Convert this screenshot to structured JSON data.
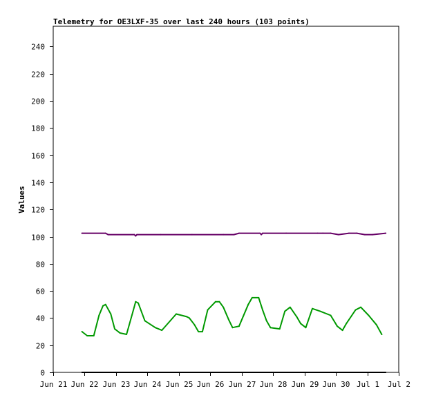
{
  "chart_data": {
    "type": "line",
    "title": "Telemetry for OE3LXF-35 over last 240 hours (103 points)",
    "xlabel": "",
    "ylabel": "Values",
    "ylim": [
      0,
      255
    ],
    "yticks": [
      0,
      20,
      40,
      60,
      80,
      100,
      120,
      140,
      160,
      180,
      200,
      220,
      240
    ],
    "xlim": [
      "2024-06-21T00:00",
      "2024-07-02T00:00"
    ],
    "xticks": [
      {
        "label": "Jun 21",
        "date": "2024-06-21"
      },
      {
        "label": "Jun 22",
        "date": "2024-06-22"
      },
      {
        "label": "Jun 23",
        "date": "2024-06-23"
      },
      {
        "label": "Jun 24",
        "date": "2024-06-24"
      },
      {
        "label": "Jun 25",
        "date": "2024-06-25"
      },
      {
        "label": "Jun 26",
        "date": "2024-06-26"
      },
      {
        "label": "Jun 27",
        "date": "2024-06-27"
      },
      {
        "label": "Jun 28",
        "date": "2024-06-28"
      },
      {
        "label": "Jun 29",
        "date": "2024-06-29"
      },
      {
        "label": "Jun 30",
        "date": "2024-06-30"
      },
      {
        "label": "Jul 1",
        "date": "2024-07-01"
      },
      {
        "label": "Jul 2",
        "date": "2024-07-02"
      }
    ],
    "grid": false,
    "legend": "none",
    "series": [
      {
        "color": "#660066",
        "x": [
          "2024-06-21T22:00",
          "2024-06-22T16:00",
          "2024-06-22T18:00",
          "2024-06-23T14:00",
          "2024-06-23T15:00",
          "2024-06-23T16:00",
          "2024-06-24T10:00",
          "2024-06-25T10:00",
          "2024-06-26T10:00",
          "2024-06-26T18:00",
          "2024-06-26T22:00",
          "2024-06-27T14:00",
          "2024-06-27T15:00",
          "2024-06-27T16:00",
          "2024-06-28T10:00",
          "2024-06-29T10:00",
          "2024-06-29T14:00",
          "2024-06-29T20:00",
          "2024-06-30T02:00",
          "2024-06-30T10:00",
          "2024-06-30T16:00",
          "2024-06-30T22:00",
          "2024-07-01T04:00",
          "2024-07-01T14:00"
        ],
        "values": [
          102.5,
          102.5,
          101.5,
          101.5,
          100.5,
          101.5,
          101.5,
          101.5,
          101.5,
          101.5,
          102.5,
          102.5,
          101.5,
          102.5,
          102.5,
          102.5,
          102.5,
          102.5,
          101.5,
          102.5,
          102.5,
          101.5,
          101.5,
          102.5
        ]
      },
      {
        "color": "#009900",
        "x": [
          "2024-06-21T22:00",
          "2024-06-22T02:00",
          "2024-06-22T07:00",
          "2024-06-22T11:00",
          "2024-06-22T14:00",
          "2024-06-22T16:00",
          "2024-06-22T20:00",
          "2024-06-22T23:00",
          "2024-06-23T03:00",
          "2024-06-23T08:00",
          "2024-06-23T13:00",
          "2024-06-23T15:00",
          "2024-06-23T17:00",
          "2024-06-23T22:00",
          "2024-06-24T06:00",
          "2024-06-24T11:00",
          "2024-06-24T22:00",
          "2024-06-25T06:00",
          "2024-06-25T08:00",
          "2024-06-25T12:00",
          "2024-06-25T15:00",
          "2024-06-25T18:00",
          "2024-06-25T22:00",
          "2024-06-26T04:00",
          "2024-06-26T07:00",
          "2024-06-26T10:00",
          "2024-06-26T14:00",
          "2024-06-26T17:00",
          "2024-06-26T22:00",
          "2024-06-27T05:00",
          "2024-06-27T08:00",
          "2024-06-27T13:00",
          "2024-06-27T16:00",
          "2024-06-27T19:00",
          "2024-06-27T22:00",
          "2024-06-28T05:00",
          "2024-06-28T09:00",
          "2024-06-28T13:00",
          "2024-06-28T18:00",
          "2024-06-28T21:00",
          "2024-06-29T01:00",
          "2024-06-29T06:00",
          "2024-06-29T12:00",
          "2024-06-29T20:00",
          "2024-06-30T01:00",
          "2024-06-30T05:00",
          "2024-06-30T08:00",
          "2024-06-30T15:00",
          "2024-06-30T19:00",
          "2024-07-01T01:00",
          "2024-07-01T07:00",
          "2024-07-01T11:00"
        ],
        "values": [
          30,
          27,
          27,
          42,
          49,
          50,
          43,
          32,
          29,
          28,
          45,
          52,
          51,
          38,
          33,
          31,
          43,
          41,
          40,
          35,
          30,
          30,
          46,
          52,
          52,
          48,
          39,
          33,
          34,
          50,
          55,
          55,
          46,
          38,
          33,
          32,
          45,
          48,
          41,
          36,
          33,
          47,
          45,
          42,
          34,
          31,
          36,
          46,
          48,
          42,
          35,
          28
        ]
      },
      {
        "color": "#000000",
        "x": [
          "2024-06-21T22:00",
          "2024-07-01T14:00"
        ],
        "values": [
          0,
          0
        ]
      }
    ]
  }
}
